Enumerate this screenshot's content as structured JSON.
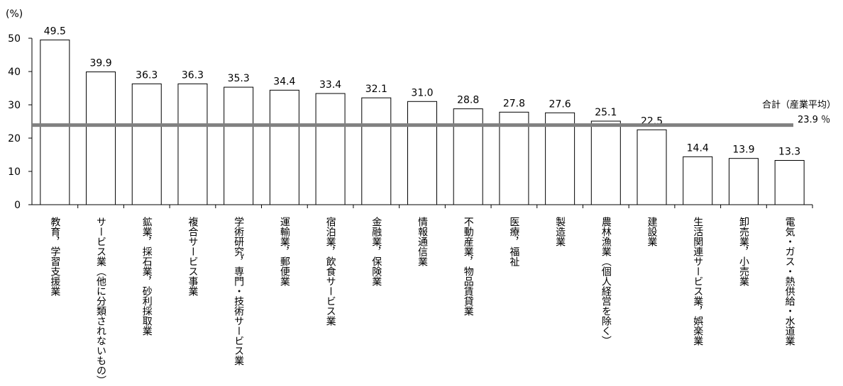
{
  "chart_data": {
    "type": "bar",
    "y_unit": "(%)",
    "ylim": [
      0,
      50
    ],
    "yticks": [
      "0",
      "10",
      "20",
      "30",
      "40",
      "50"
    ],
    "categories": [
      "教育，学習支援業",
      "サービス業（他に分類されないもの）",
      "鉱業，採石業，砂利採取業",
      "複合サービス事業",
      "学術研究，専門・技術サービス業",
      "運輸業，郵便業",
      "宿泊業，飲食サービス業",
      "金融業，保険業",
      "情報通信業",
      "不動産業，物品賃貸業",
      "医療，福祉",
      "製造業",
      "農林漁業（個人経営を除く）",
      "建設業",
      "生活関連サービス業，娯楽業",
      "卸売業，小売業",
      "電気・ガス・熱供給・水道業"
    ],
    "values": [
      49.5,
      39.9,
      36.3,
      36.3,
      35.3,
      34.4,
      33.4,
      32.1,
      31.0,
      28.8,
      27.8,
      27.6,
      25.1,
      22.5,
      14.4,
      13.9,
      13.3
    ],
    "value_labels": [
      "49.5",
      "39.9",
      "36.3",
      "36.3",
      "35.3",
      "34.4",
      "33.4",
      "32.1",
      "31.0",
      "28.8",
      "27.8",
      "27.6",
      "25.1",
      "22.5",
      "14.4",
      "13.9",
      "13.3"
    ],
    "reference_line": {
      "value": 23.9,
      "label": "合計（産業平均）",
      "value_label": "23.9 ％",
      "color": "#808080"
    },
    "bar_fill": "#ffffff",
    "bar_stroke": "#000000",
    "grid": false
  }
}
